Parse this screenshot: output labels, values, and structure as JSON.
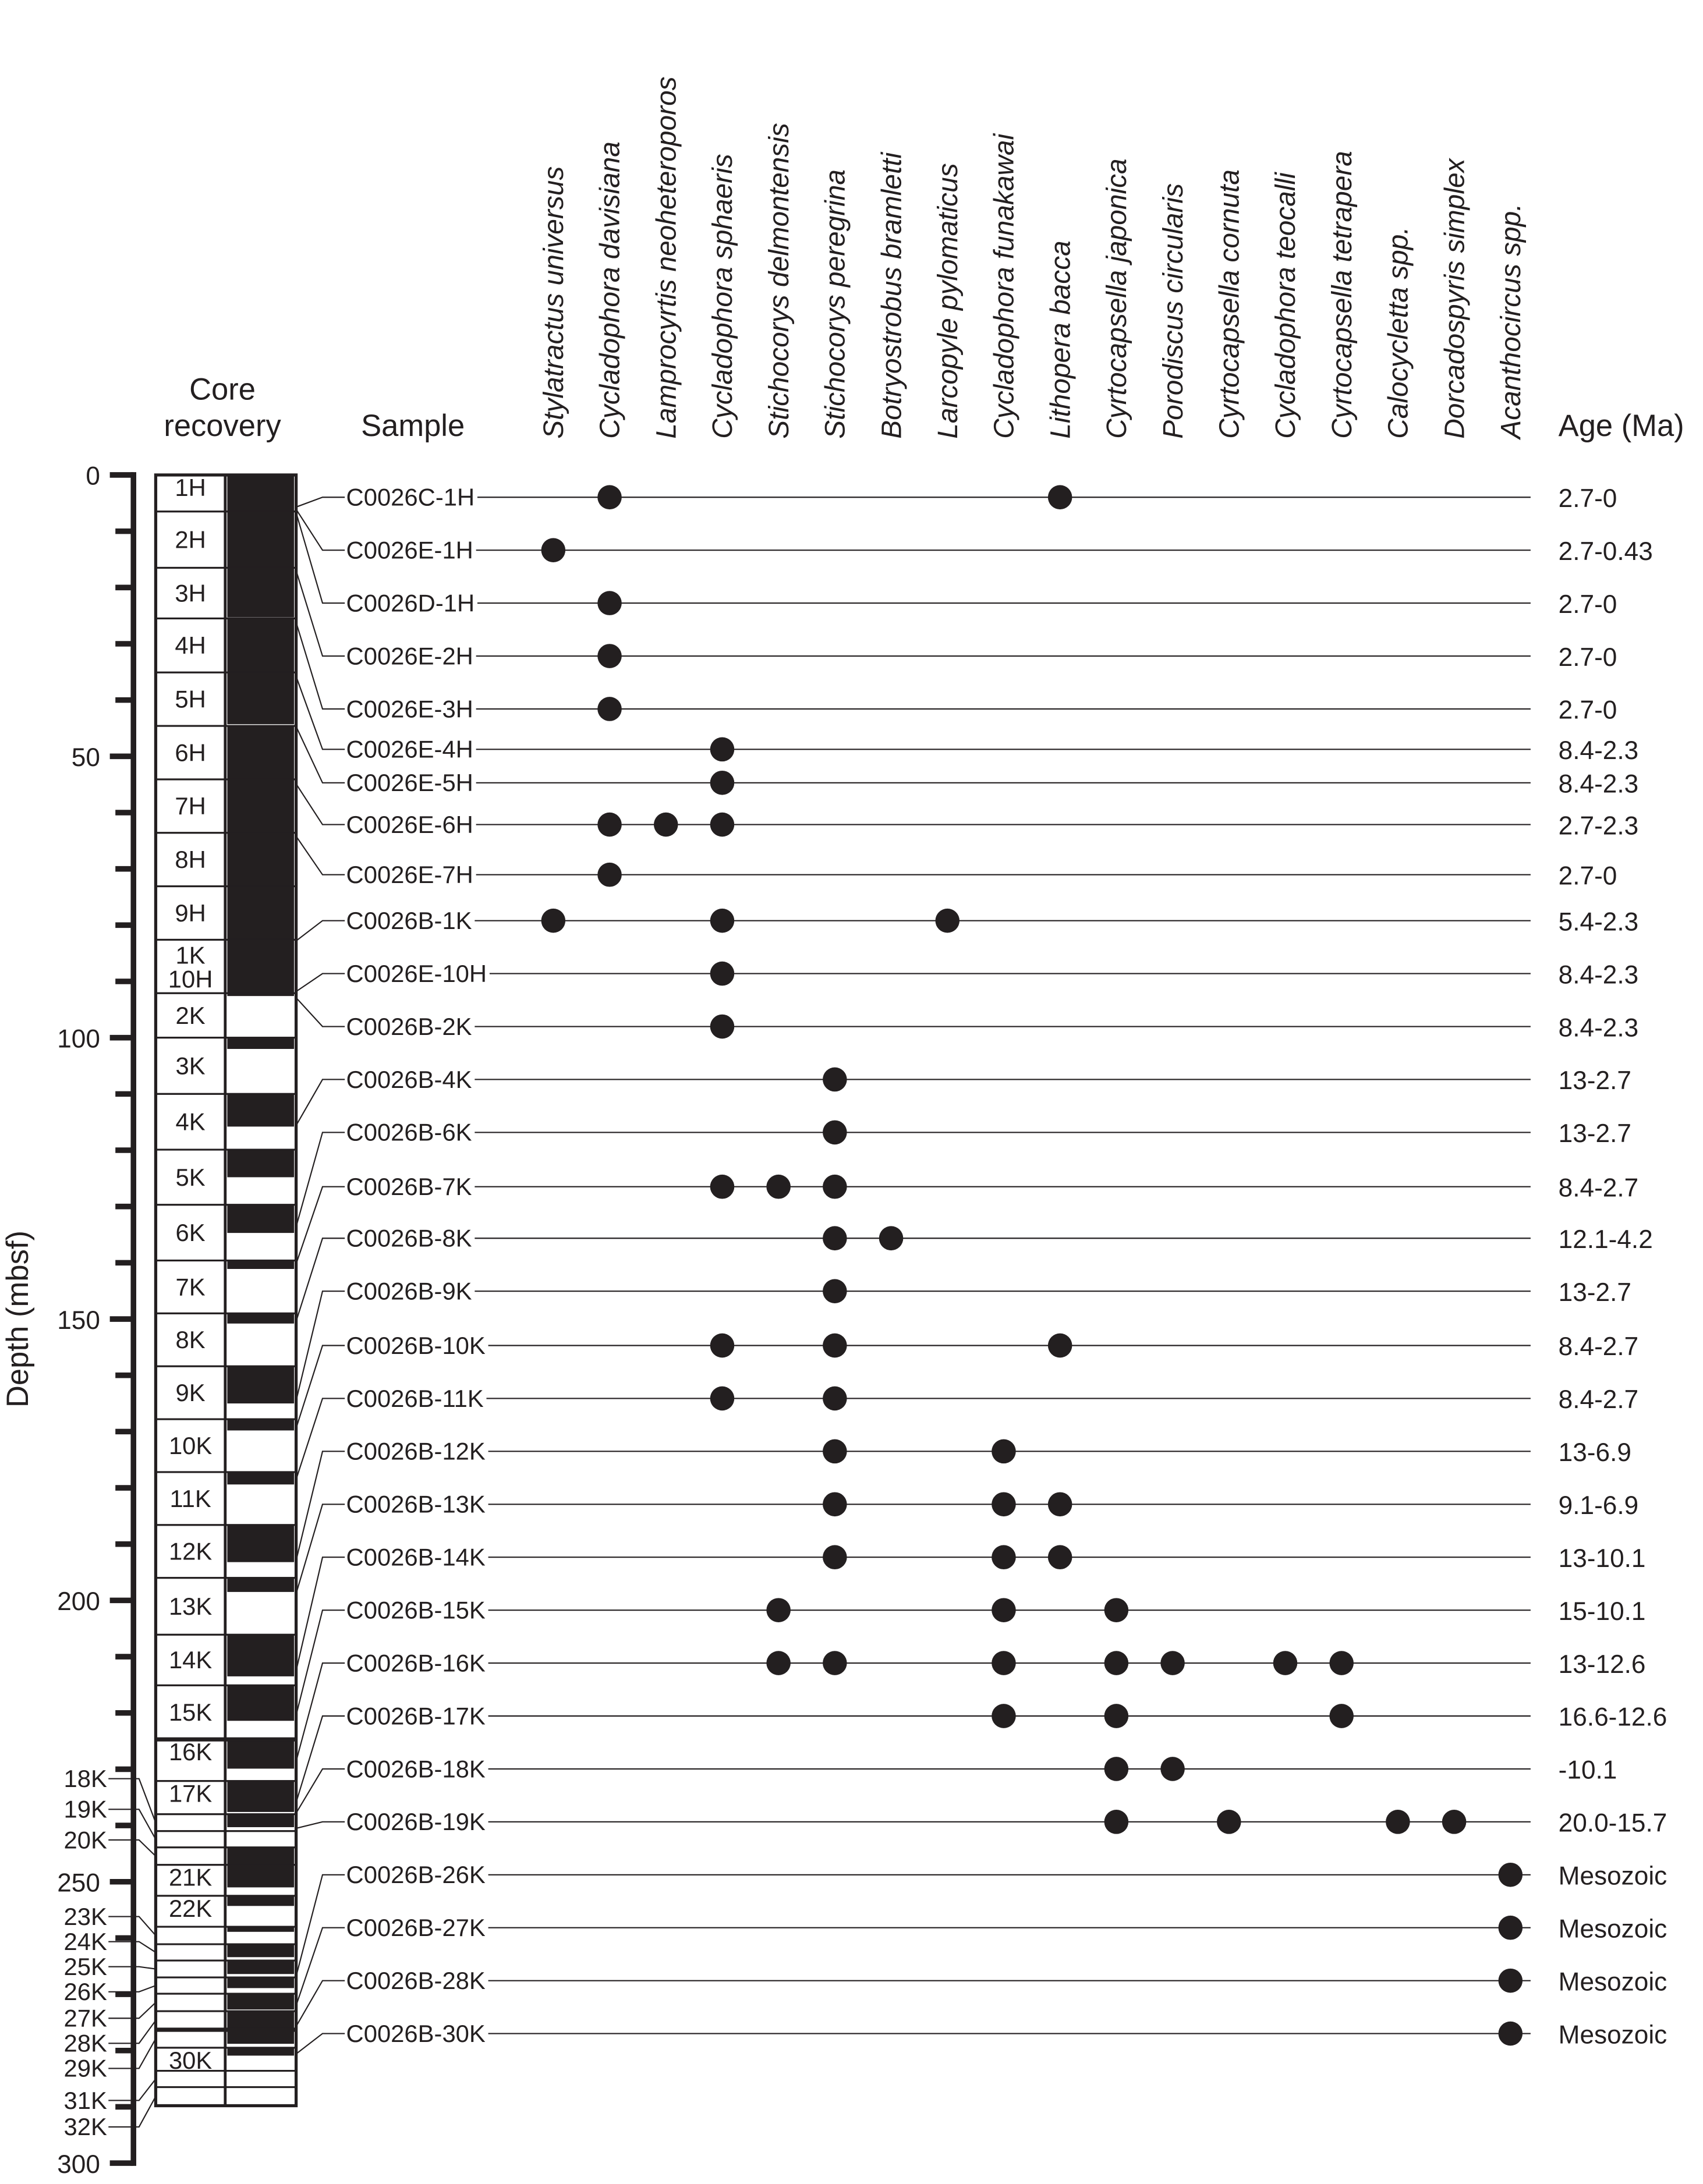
{
  "chart_data": {
    "type": "scatter",
    "title": "",
    "ylabel": "Depth (mbsf)",
    "ylim": [
      0,
      300
    ],
    "y_ticks": [
      0,
      50,
      100,
      150,
      200,
      250,
      300
    ],
    "headers": {
      "core_recovery_line1": "Core",
      "core_recovery_line2": "recovery",
      "sample": "Sample",
      "age": "Age (Ma)"
    },
    "colors": {
      "ink": "#231f20",
      "background": "#ffffff"
    },
    "species": [
      "Stylatractus universus",
      "Cycladophora davisiana",
      "Lamprocyrtis neoheteroporos",
      "Cycladophora sphaeris",
      "Stichocorys delmontensis",
      "Stichocorys peregrina",
      "Botryostrobus bramletti",
      "Larcopyle pylomaticus",
      "Cycladophora funakawai",
      "Lithopera bacca",
      "Cyrtocapsella japonica",
      "Porodiscus circularis",
      "Cyrtocapsella cornuta",
      "Cycladophora teocalli",
      "Cyrtocapsella tetrapera",
      "Calocycletta spp.",
      "Dorcadospyris simplex",
      "Acanthocircus spp."
    ],
    "cores": [
      {
        "name": "1H",
        "top": 0,
        "bottom": 6.5,
        "recovered_to": 6.5
      },
      {
        "name": "2H",
        "top": 6.5,
        "bottom": 16.5,
        "recovered_to": 16.5
      },
      {
        "name": "3H",
        "top": 16.5,
        "bottom": 25.5,
        "recovered_to": 25.3
      },
      {
        "name": "4H",
        "top": 25.5,
        "bottom": 35.1,
        "recovered_to": 35.1
      },
      {
        "name": "5H",
        "top": 35.1,
        "bottom": 44.6,
        "recovered_to": 44.3
      },
      {
        "name": "6H",
        "top": 44.6,
        "bottom": 54.1,
        "recovered_to": 54.1
      },
      {
        "name": "7H",
        "top": 54.1,
        "bottom": 63.6,
        "recovered_to": 63.6
      },
      {
        "name": "8H",
        "top": 63.6,
        "bottom": 73.1,
        "recovered_to": 73.1
      },
      {
        "name": "9H",
        "top": 73.1,
        "bottom": 82.6,
        "recovered_to": 82.6
      },
      {
        "name": "1K",
        "name2": "10H",
        "top": 82.6,
        "bottom": 92.1,
        "recovered_to": 92.1
      },
      {
        "name": "2K",
        "top": 92.1,
        "bottom": 100.0,
        "recovered_to": 92.6
      },
      {
        "name": "3K",
        "top": 100.0,
        "bottom": 110.0,
        "recovered_to": 102.0
      },
      {
        "name": "4K",
        "top": 110.0,
        "bottom": 119.9,
        "recovered_to": 115.8
      },
      {
        "name": "5K",
        "top": 119.9,
        "bottom": 129.7,
        "recovered_to": 124.8
      },
      {
        "name": "6K",
        "top": 129.7,
        "bottom": 139.6,
        "recovered_to": 134.7
      },
      {
        "name": "7K",
        "top": 139.6,
        "bottom": 149.0,
        "recovered_to": 141.1
      },
      {
        "name": "8K",
        "top": 149.0,
        "bottom": 158.4,
        "recovered_to": 150.8
      },
      {
        "name": "9K",
        "top": 158.4,
        "bottom": 167.8,
        "recovered_to": 165.0
      },
      {
        "name": "10K",
        "top": 167.8,
        "bottom": 177.2,
        "recovered_to": 169.8
      },
      {
        "name": "11K",
        "top": 177.2,
        "bottom": 186.6,
        "recovered_to": 179.4
      },
      {
        "name": "12K",
        "top": 186.6,
        "bottom": 196.0,
        "recovered_to": 193.2
      },
      {
        "name": "13K",
        "top": 196.0,
        "bottom": 206.1,
        "recovered_to": 198.5
      },
      {
        "name": "14K",
        "top": 206.1,
        "bottom": 215.1,
        "recovered_to": 213.5
      },
      {
        "name": "15K",
        "top": 215.1,
        "bottom": 224.7,
        "recovered_to": 221.4
      },
      {
        "name": "16K",
        "top": 224.7,
        "bottom": 232.1,
        "recovered_to": 229.9
      },
      {
        "name": "17K",
        "top": 232.1,
        "bottom": 238.0,
        "recovered_to": 237.6
      },
      {
        "name": "18K",
        "top": 238.0,
        "bottom": 241.0,
        "recovered_to": 240.3,
        "outside": true
      },
      {
        "name": "19K",
        "top": 241.0,
        "bottom": 243.9,
        "recovered_to": 241.0,
        "outside": true
      },
      {
        "name": "20K",
        "top": 243.9,
        "bottom": 247.0,
        "recovered_to": 247.0,
        "outside": true
      },
      {
        "name": "21K",
        "top": 247.0,
        "bottom": 252.5,
        "recovered_to": 251.0
      },
      {
        "name": "22K",
        "top": 252.5,
        "bottom": 258.0,
        "recovered_to": 254.3
      },
      {
        "name": "23K",
        "top": 258.0,
        "bottom": 261.1,
        "recovered_to": 258.9,
        "outside": true
      },
      {
        "name": "24K",
        "top": 261.1,
        "bottom": 264.0,
        "recovered_to": 263.4,
        "outside": true
      },
      {
        "name": "25K",
        "top": 264.0,
        "bottom": 267.0,
        "recovered_to": 266.4,
        "outside": true
      },
      {
        "name": "26K",
        "top": 267.0,
        "bottom": 269.9,
        "recovered_to": 268.9,
        "outside": true
      },
      {
        "name": "27K",
        "top": 269.9,
        "bottom": 273.0,
        "recovered_to": 272.7,
        "outside": true
      },
      {
        "name": "28K",
        "top": 273.0,
        "bottom": 276.3,
        "recovered_to": 276.2,
        "outside": true
      },
      {
        "name": "29K",
        "top": 276.3,
        "bottom": 279.5,
        "recovered_to": 278.8,
        "outside": true
      },
      {
        "name": "30K",
        "top": 279.5,
        "bottom": 283.6,
        "recovered_to": 280.9
      },
      {
        "name": "31K",
        "top": 283.6,
        "bottom": 286.5,
        "recovered_to": 283.6,
        "outside": true
      },
      {
        "name": "32K",
        "top": 286.5,
        "bottom": 289.8,
        "recovered_to": 286.5,
        "outside": true
      }
    ],
    "samples": [
      {
        "name": "C0026C-1H",
        "depth": 5.7,
        "age": "2.7-0",
        "occurrences": [
          1,
          9
        ]
      },
      {
        "name": "C0026E-1H",
        "depth": 6.1,
        "age": "2.7-0.43",
        "occurrences": [
          0
        ]
      },
      {
        "name": "C0026D-1H",
        "depth": 6.7,
        "age": "2.7-0",
        "occurrences": [
          1
        ]
      },
      {
        "name": "C0026E-2H",
        "depth": 17.0,
        "age": "2.7-0",
        "occurrences": [
          1
        ]
      },
      {
        "name": "C0026E-3H",
        "depth": 26.2,
        "age": "2.7-0",
        "occurrences": [
          1
        ]
      },
      {
        "name": "C0026E-4H",
        "depth": 35.8,
        "age": "8.4-2.3",
        "occurrences": [
          3
        ]
      },
      {
        "name": "C0026E-5H",
        "depth": 44.7,
        "age": "8.4-2.3",
        "occurrences": [
          3
        ]
      },
      {
        "name": "C0026E-6H",
        "depth": 54.9,
        "age": "2.7-2.3",
        "occurrences": [
          1,
          2,
          3
        ]
      },
      {
        "name": "C0026E-7H",
        "depth": 64.2,
        "age": "2.7-0",
        "occurrences": [
          1
        ]
      },
      {
        "name": "C0026B-1K",
        "depth": 82.8,
        "age": "5.4-2.3",
        "occurrences": [
          0,
          3,
          7
        ]
      },
      {
        "name": "C0026E-10H",
        "depth": 91.8,
        "age": "8.4-2.3",
        "occurrences": [
          3
        ]
      },
      {
        "name": "C0026B-2K",
        "depth": 92.9,
        "age": "8.4-2.3",
        "occurrences": [
          3
        ]
      },
      {
        "name": "C0026B-4K",
        "depth": 115.6,
        "age": "13-2.7",
        "occurrences": [
          5
        ]
      },
      {
        "name": "C0026B-6K",
        "depth": 133.6,
        "age": "13-2.7",
        "occurrences": [
          5
        ]
      },
      {
        "name": "C0026B-7K",
        "depth": 140.2,
        "age": "8.4-2.7",
        "occurrences": [
          3,
          4,
          5
        ]
      },
      {
        "name": "C0026B-8K",
        "depth": 150.4,
        "age": "12.1-4.2",
        "occurrences": [
          5,
          6
        ]
      },
      {
        "name": "C0026B-9K",
        "depth": 164.5,
        "age": "13-2.7",
        "occurrences": [
          5
        ]
      },
      {
        "name": "C0026B-10K",
        "depth": 169.4,
        "age": "8.4-2.7",
        "occurrences": [
          3,
          5,
          9
        ]
      },
      {
        "name": "C0026B-11K",
        "depth": 178.5,
        "age": "8.4-2.7",
        "occurrences": [
          3,
          5
        ]
      },
      {
        "name": "C0026B-12K",
        "depth": 192.9,
        "age": "13-6.9",
        "occurrences": [
          5,
          8
        ]
      },
      {
        "name": "C0026B-13K",
        "depth": 198.8,
        "age": "9.1-6.9",
        "occurrences": [
          5,
          8,
          9
        ]
      },
      {
        "name": "C0026B-14K",
        "depth": 212.5,
        "age": "13-10.1",
        "occurrences": [
          5,
          8,
          9
        ]
      },
      {
        "name": "C0026B-15K",
        "depth": 220.4,
        "age": "15-10.1",
        "occurrences": [
          4,
          8,
          10
        ]
      },
      {
        "name": "C0026B-16K",
        "depth": 228.6,
        "age": "13-12.6",
        "occurrences": [
          4,
          5,
          8,
          10,
          11,
          13,
          14
        ]
      },
      {
        "name": "C0026B-17K",
        "depth": 235.9,
        "age": "16.6-12.6",
        "occurrences": [
          8,
          10,
          14
        ]
      },
      {
        "name": "C0026B-18K",
        "depth": 237.8,
        "age": "-10.1",
        "occurrences": [
          10,
          11
        ]
      },
      {
        "name": "C0026B-19K",
        "depth": 240.5,
        "age": "20.0-15.7",
        "occurrences": [
          10,
          12,
          15,
          16
        ]
      },
      {
        "name": "C0026B-26K",
        "depth": 266.8,
        "age": "Mesozoic",
        "occurrences": [
          17
        ]
      },
      {
        "name": "C0026B-27K",
        "depth": 272.0,
        "age": "Mesozoic",
        "occurrences": [
          17
        ]
      },
      {
        "name": "C0026B-28K",
        "depth": 275.7,
        "age": "Mesozoic",
        "occurrences": [
          17
        ]
      },
      {
        "name": "C0026B-30K",
        "depth": 280.6,
        "age": "Mesozoic",
        "occurrences": [
          17
        ]
      }
    ]
  }
}
